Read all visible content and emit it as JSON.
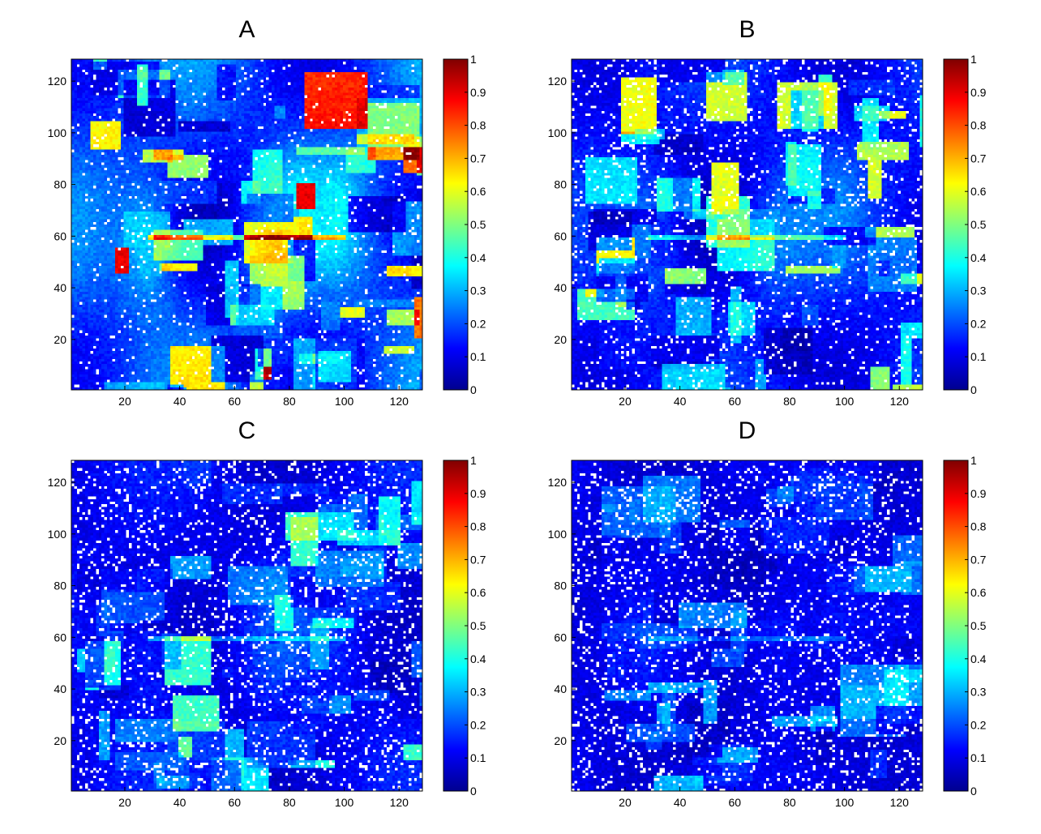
{
  "figure": {
    "title": ""
  },
  "colors": {
    "colormap": [
      "#00008f",
      "#0000ff",
      "#00ffff",
      "#ffff00",
      "#ff0000",
      "#800000"
    ],
    "background": "#ffffff",
    "speckle": "#ffffff"
  },
  "chart_data": [
    {
      "type": "heatmap",
      "title": "A",
      "xlabel": "",
      "ylabel": "",
      "xlim": [
        1,
        128
      ],
      "ylim": [
        1,
        128
      ],
      "xticks": [
        "20",
        "40",
        "60",
        "80",
        "100",
        "120"
      ],
      "yticks": [
        "20",
        "40",
        "60",
        "80",
        "100",
        "120"
      ],
      "colorbar": {
        "range": [
          0,
          1
        ],
        "ticks": [
          "0",
          "0.1",
          "0.2",
          "0.3",
          "0.4",
          "0.5",
          "0.6",
          "0.7",
          "0.8",
          "0.9",
          "1"
        ]
      },
      "grid": false,
      "intensity": 1.0,
      "seed": 11
    },
    {
      "type": "heatmap",
      "title": "B",
      "xlabel": "",
      "ylabel": "",
      "xlim": [
        1,
        128
      ],
      "ylim": [
        1,
        128
      ],
      "xticks": [
        "20",
        "40",
        "60",
        "80",
        "100",
        "120"
      ],
      "yticks": [
        "20",
        "40",
        "60",
        "80",
        "100",
        "120"
      ],
      "colorbar": {
        "range": [
          0,
          1
        ],
        "ticks": [
          "0",
          "0.1",
          "0.2",
          "0.3",
          "0.4",
          "0.5",
          "0.6",
          "0.7",
          "0.8",
          "0.9",
          "1"
        ]
      },
      "grid": false,
      "intensity": 0.62,
      "seed": 23
    },
    {
      "type": "heatmap",
      "title": "C",
      "xlabel": "",
      "ylabel": "",
      "xlim": [
        1,
        128
      ],
      "ylim": [
        1,
        128
      ],
      "xticks": [
        "20",
        "40",
        "60",
        "80",
        "100",
        "120"
      ],
      "yticks": [
        "20",
        "40",
        "60",
        "80",
        "100",
        "120"
      ],
      "colorbar": {
        "range": [
          0,
          1
        ],
        "ticks": [
          "0",
          "0.1",
          "0.2",
          "0.3",
          "0.4",
          "0.5",
          "0.6",
          "0.7",
          "0.8",
          "0.9",
          "1"
        ]
      },
      "grid": false,
      "intensity": 0.42,
      "seed": 37
    },
    {
      "type": "heatmap",
      "title": "D",
      "xlabel": "",
      "ylabel": "",
      "xlim": [
        1,
        128
      ],
      "ylim": [
        1,
        128
      ],
      "xticks": [
        "20",
        "40",
        "60",
        "80",
        "100",
        "120"
      ],
      "yticks": [
        "20",
        "40",
        "60",
        "80",
        "100",
        "120"
      ],
      "colorbar": {
        "range": [
          0,
          1
        ],
        "ticks": [
          "0",
          "0.1",
          "0.2",
          "0.3",
          "0.4",
          "0.5",
          "0.6",
          "0.7",
          "0.8",
          "0.9",
          "1"
        ]
      },
      "grid": false,
      "intensity": 0.28,
      "seed": 53
    }
  ]
}
